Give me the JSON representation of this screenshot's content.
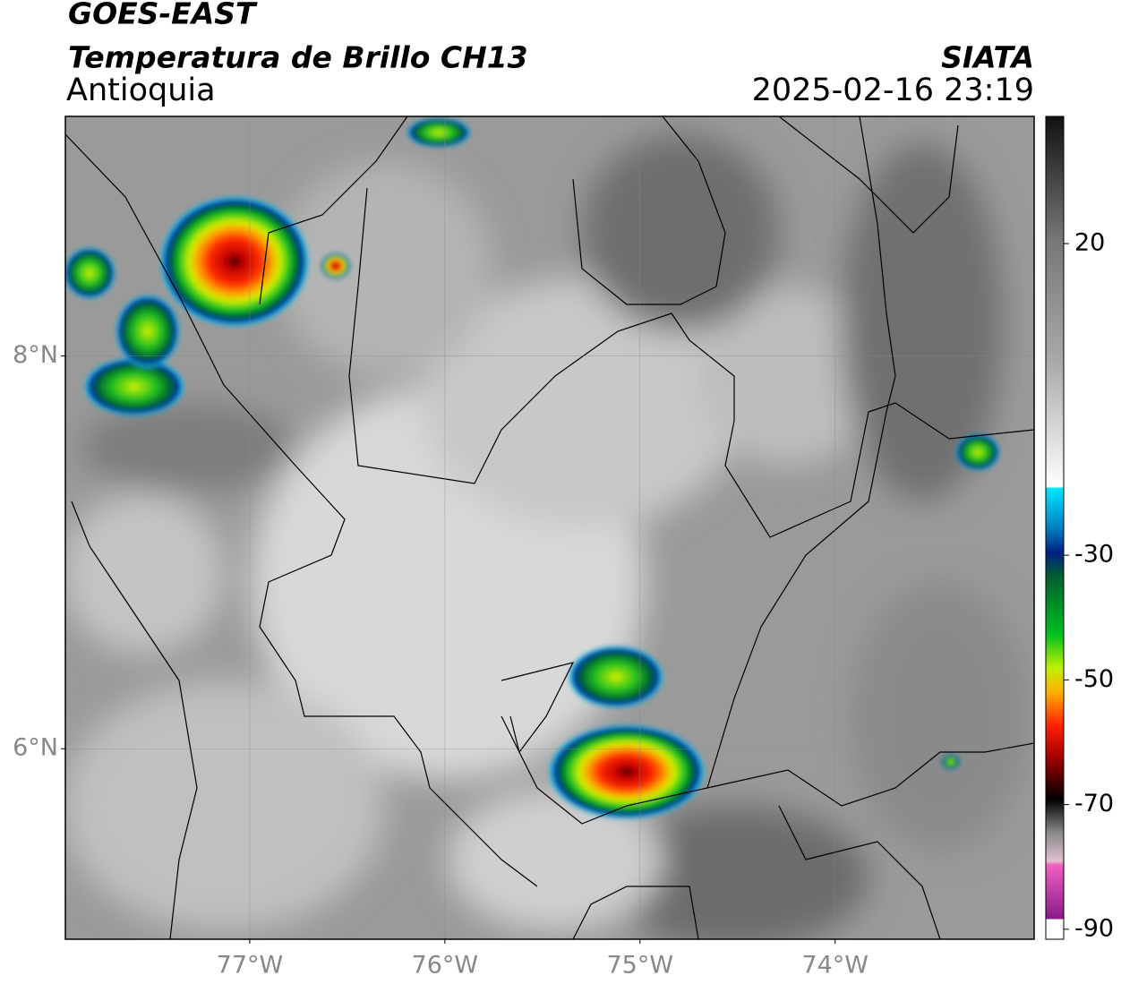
{
  "header": {
    "title": "GOES-EAST",
    "subtitle": "Temperatura de Brillo CH13",
    "region": "Antioquia",
    "source": "SIATA",
    "datetime": "2025-02-16 23:19"
  },
  "map": {
    "xlim": [
      -77.945,
      -72.98
    ],
    "ylim": [
      5.03,
      9.22
    ],
    "xticks": [
      {
        "value": -77,
        "label": "77°W"
      },
      {
        "value": -76,
        "label": "76°W"
      },
      {
        "value": -75,
        "label": "75°W"
      },
      {
        "value": -74,
        "label": "74°W"
      }
    ],
    "yticks": [
      {
        "value": 8,
        "label": "8°N"
      },
      {
        "value": 6,
        "label": "6°N"
      }
    ],
    "grid": true
  },
  "colorbar": {
    "lim": [
      -91.6,
      40.4
    ],
    "ticks": [
      20,
      -30,
      -50,
      -70,
      -90
    ]
  }
}
